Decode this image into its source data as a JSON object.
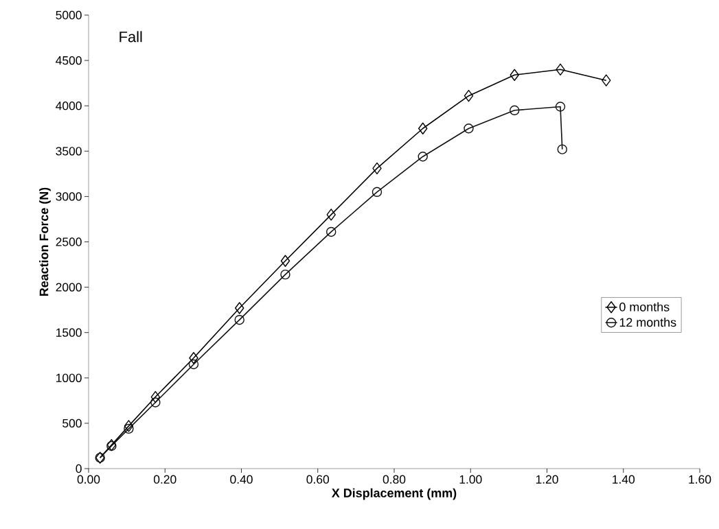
{
  "chart_data": {
    "type": "line",
    "xlabel": "X Displacement (mm)",
    "ylabel": "Reaction Force (N)",
    "annotations": [
      "Fall"
    ],
    "xlim": [
      0,
      1.6
    ],
    "xticks": [
      {
        "value": 0,
        "label": "0.00"
      },
      {
        "value": 0.2,
        "label": "0.20"
      },
      {
        "value": 0.4,
        "label": "0.40"
      },
      {
        "value": 0.6,
        "label": "0.60"
      },
      {
        "value": 0.8,
        "label": "0.80"
      },
      {
        "value": 1.0,
        "label": "1.00"
      },
      {
        "value": 1.2,
        "label": "1.20"
      },
      {
        "value": 1.4,
        "label": "1.40"
      },
      {
        "value": 1.6,
        "label": "1.60"
      }
    ],
    "ylim": [
      0,
      5000
    ],
    "yticks": [
      0,
      500,
      1000,
      1500,
      2000,
      2500,
      3000,
      3500,
      4000,
      4500,
      5000
    ],
    "grid": false,
    "legend": "bottom right",
    "line_style": "solid",
    "series": [
      {
        "name": "0 months",
        "color": "#000000",
        "marker": "diamond",
        "x": [
          0.03,
          0.06,
          0.105,
          0.175,
          0.275,
          0.395,
          0.515,
          0.635,
          0.755,
          0.875,
          0.995,
          1.115,
          1.235,
          1.355
        ],
        "values": [
          120,
          260,
          470,
          790,
          1220,
          1770,
          2290,
          2800,
          3310,
          3750,
          4110,
          4340,
          4400,
          4280
        ]
      },
      {
        "name": "12 months",
        "color": "#111111",
        "marker": "circle",
        "x": [
          0.03,
          0.06,
          0.105,
          0.175,
          0.275,
          0.395,
          0.515,
          0.635,
          0.755,
          0.875,
          0.995,
          1.115,
          1.235,
          1.24
        ],
        "values": [
          120,
          250,
          440,
          730,
          1150,
          1640,
          2140,
          2610,
          3050,
          3440,
          3750,
          3950,
          3990,
          3520
        ]
      }
    ]
  }
}
